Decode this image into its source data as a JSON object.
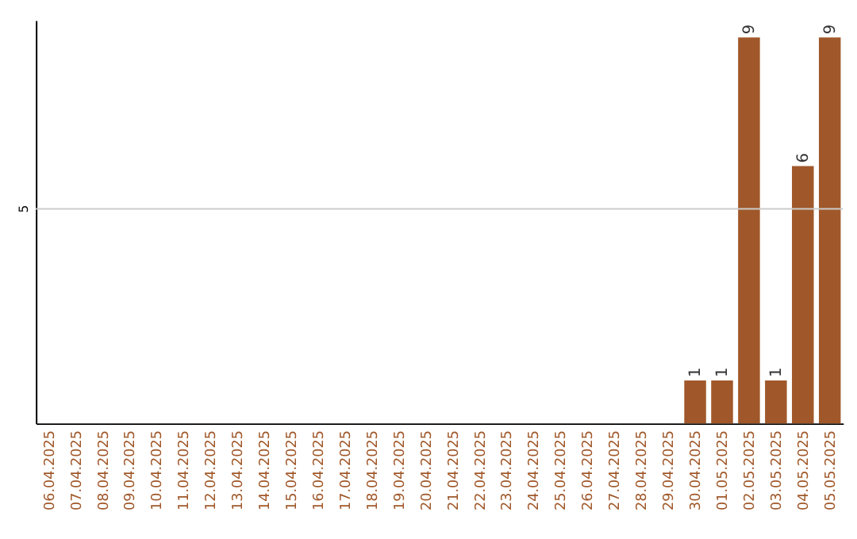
{
  "chart_data": {
    "type": "bar",
    "categories": [
      "06.04.2025",
      "07.04.2025",
      "08.04.2025",
      "09.04.2025",
      "10.04.2025",
      "11.04.2025",
      "12.04.2025",
      "13.04.2025",
      "14.04.2025",
      "15.04.2025",
      "16.04.2025",
      "17.04.2025",
      "18.04.2025",
      "19.04.2025",
      "20.04.2025",
      "21.04.2025",
      "22.04.2025",
      "23.04.2025",
      "24.04.2025",
      "25.04.2025",
      "26.04.2025",
      "27.04.2025",
      "28.04.2025",
      "29.04.2025",
      "30.04.2025",
      "01.05.2025",
      "02.05.2025",
      "03.05.2025",
      "04.05.2025",
      "05.05.2025"
    ],
    "values": [
      null,
      null,
      null,
      null,
      null,
      null,
      null,
      null,
      null,
      null,
      null,
      null,
      null,
      null,
      null,
      null,
      null,
      null,
      null,
      null,
      null,
      null,
      null,
      null,
      1,
      1,
      9,
      1,
      6,
      9
    ],
    "data_labels": true,
    "color": "#a0582a",
    "ylim": [
      0,
      9.4
    ],
    "ref_lines": [
      {
        "axis": "y",
        "value": 5,
        "label": "5",
        "color": "#cccccc"
      }
    ]
  }
}
